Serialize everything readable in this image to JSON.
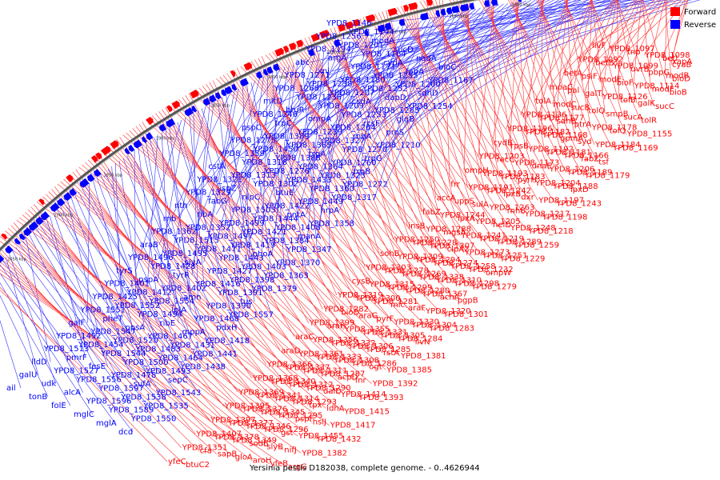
{
  "caption": "Yersinia pestis D182038, complete genome. - 0..4626944",
  "legend": [
    {
      "label": "Forward",
      "color": "#ff0000"
    },
    {
      "label": "Reverse",
      "color": "#0000ff"
    }
  ],
  "backbone_ticks": [
    "1450 kbp",
    "1500 kbp",
    "1550 kbp",
    "1600 kbp",
    "1650 kbp",
    "1700 kbp",
    "1750 kbp",
    "1800 kbp",
    "1850 kbp",
    "1900 kbp",
    "1950 kbp",
    "2000 kbp",
    "2050 kbp"
  ],
  "reverse_labels": [
    "ail",
    "tonB",
    "folE",
    "mglC",
    "mglA",
    "dcd",
    "galU",
    "udk",
    "alcA",
    "YPD8_1596",
    "YPD8_1589",
    "YPD8_1550",
    "lldD",
    "YPD8_1527",
    "YPD8_1556",
    "YPD8_1597",
    "YPD8_1538",
    "YPD8_1535",
    "YPD8_1513",
    "pmrF",
    "fesE",
    "YPD8_1478",
    "sufA",
    "YPD8_1543",
    "YPD8_1492",
    "YPD8_1454",
    "YPD8_1544",
    "YPD8_1500",
    "YPD8_1493",
    "sepC",
    "galF",
    "YPD8_1547",
    "YPD8_1520",
    "YPD8_1483",
    "YPD8_1464",
    "YPD8_1438",
    "YPD8_1551",
    "pheT",
    "ppsA",
    "YPD8_1467",
    "YPD8_1431",
    "YPD8_1441",
    "YPD8_1425",
    "YPD8_1552",
    "YPD8_1494",
    "ribE",
    "mppA",
    "YPD8_1418",
    "YPD8_1401",
    "YPD8_1412",
    "YPD8_1554",
    "lplA",
    "YPD8_1468",
    "pdxH",
    "tyrS",
    "pspA",
    "YPD8_1402",
    "amn",
    "YPD8_1390",
    "YPD8_1557",
    "YPD8_1496",
    "YPD8_1428",
    "tyrR",
    "YPD8_1416",
    "YPD8_1391",
    "tus",
    "araB",
    "YPD8_1495",
    "slyA",
    "YPD8_1427",
    "YPD8_1398",
    "YPD8_1379",
    "YPD8_1362",
    "YPD8_1515",
    "YPD8_1471",
    "YPD8_1443",
    "YPD8_1403",
    "YPD8_1363",
    "rnb",
    "YPD8_1352",
    "YPD8_1497",
    "YPD8_1419",
    "phoA",
    "YPD8_1370",
    "nth",
    "ribA",
    "YPD8_1499",
    "YPD8_1421",
    "YPD8_1384",
    "YPD8_1347",
    "YPD8_1329",
    "fabG",
    "YPD8_1505",
    "YPD8_1444",
    "YPD8_1408",
    "manA",
    "YPD8_1321",
    "ispZ",
    "nlpC",
    "YPD8_1422",
    "pntA",
    "YPD8_1358",
    "cstA",
    "YPD8_1313",
    "YPD8_1302",
    "btuE",
    "YPD8_1449",
    "hrpA",
    "YPD8_1359",
    "YPD8_1316",
    "YPD8_1276",
    "YPD8_1433",
    "YPD8_1360",
    "YPD8_1317",
    "YPD8_1275",
    "YPD8_1450",
    "YPD8_1388",
    "YPD8_1364",
    "YPD8_1323",
    "YPD8_1272",
    "pspC",
    "YPD8_1389",
    "YPD8_1365",
    "trpA",
    "YPD8_1260",
    "trpB",
    "YPD8_1246",
    "trpC",
    "YPD8_1239",
    "YPD8_1327",
    "YPD8_1270",
    "trpG",
    "mltD",
    "btuR",
    "ompA",
    "YPD8_1264",
    "rnhA",
    "YPD8_1210",
    "YPD8_1268",
    "YPD8_1236",
    "YPD8_1209",
    "YPD8_1253",
    "rcsF",
    "proS",
    "YPD8_1271",
    "YPD8_1238",
    "YPD8_1207",
    "csdA",
    "YPD8_1265",
    "glgB",
    "abc",
    "xni",
    "YPD8_1180",
    "YPD8_1252",
    "dapD",
    "YPD8_1254",
    "YPD8_1194",
    "argA",
    "YPD8_1171",
    "YPD8_1255",
    "YPD8_1200",
    "sdhD",
    "YPD8_1256",
    "YPD8_1201",
    "YPD8_1164",
    "cydA",
    "fabA",
    "YPD8_1167",
    "YPD8_1146",
    "YPD8_1144",
    "modA",
    "sucD",
    "nadA",
    "bioC"
  ],
  "forward_labels": [
    "livF",
    "YPD8_1097",
    "tnp",
    "YPD8_1098",
    "betI",
    "xapA",
    "cyaB",
    "YPD8_1092",
    "betB",
    "YPD8_1099",
    "uvrB",
    "pbpG",
    "modB",
    "bioD",
    "betA",
    "psiF",
    "modE",
    "bioF",
    "YPD8_1114",
    "modF",
    "bioB",
    "moaC",
    "pal",
    "galT",
    "YPD8_1126",
    "tolB",
    "galK",
    "sucC",
    "tolA",
    "modC",
    "sucB",
    "tolQ",
    "smpB",
    "sucA",
    "tolR",
    "YPD8_1136",
    "YPD8_1177",
    "sdhB",
    "ptrA",
    "YPD8_1178",
    "tolQ",
    "YPD8_1155",
    "YPD8_1196",
    "YPD8_1182",
    "YPD8_1168",
    "gpmA",
    "syd",
    "YPD8_1184",
    "YPD8_1169",
    "cydB",
    "rpsB",
    "YPD8_1192",
    "YPD8_1181",
    "YPD8_1166",
    "fabZ",
    "tsf",
    "YPD8_1203",
    "recC",
    "YPD8_1173",
    "dnaE",
    "YPD8_1206",
    "YPD8_1189",
    "YPD8_1179",
    "ompH",
    "YPD8_1193",
    "YPD8_1183",
    "pyrH",
    "YPD8_1204",
    "YPD8_1188",
    "lpxD",
    "frr",
    "YPD8_1191",
    "YPD8_1242",
    "lpxB",
    "dxr",
    "YPD8_1197",
    "YPD8_1243",
    "accA",
    "uppS",
    "sulA",
    "YPD8_1263",
    "rnhB",
    "YPD8_1217",
    "YPD8_1198",
    "fabZ",
    "YPD8_1244",
    "lpxA",
    "YPD8_1205",
    "helD",
    "YPD8_1248",
    "YPD8_1218",
    "insB",
    "YPD8_1288",
    "mgsA",
    "YPD8_1241",
    "YPD8_1219",
    "YPD8_1289",
    "YPD8_1259",
    "YPD8_1250",
    "YPD8_1228",
    "YPD8_1307",
    "clpA2",
    "YPD8_1273",
    "YPD8_1251",
    "YPD8_1229",
    "sohB",
    "YPD8_1309",
    "YPD8_1294",
    "YPD8_1274",
    "YPD8_1258",
    "YPD8_1232",
    "ompW",
    "YPD8_1303",
    "YPD8_1278",
    "YPD8_1269",
    "YPD8_1338",
    "YPD8_1310",
    "YPD8_1298",
    "YPD8_1279",
    "cysB",
    "YPD8_1315",
    "YPD8_1299",
    "YPD8_1280",
    "YPD8_1367",
    "acnA",
    "pgpB",
    "YPD8_1319",
    "YPD8_1300",
    "YPD8_1281",
    "mlc",
    "araF",
    "YPD8_1320",
    "YPD8_1301",
    "YPD8_1282",
    "bioD",
    "araG",
    "pyrF",
    "YPD8_1330",
    "YPD8_1304",
    "YPD8_1283",
    "YPD8_1399",
    "araH",
    "YPD8_1355",
    "YPD8_1331",
    "YPD8_1305",
    "YPD8_1284",
    "ilvN",
    "araC",
    "YPD8_1356",
    "YPD8_1332",
    "YPD8_1306",
    "YPD8_1285",
    "rstA",
    "YPD8_1381",
    "araD",
    "YPD8_1361",
    "YPD8_1333",
    "YPD8_1308",
    "YPD8_1286",
    "ogt",
    "YPD8_1385",
    "YPD8_1366",
    "YPD8_1337",
    "YPD8_1311",
    "YPD8_1287",
    "acpD",
    "fnr",
    "YPD8_1392",
    "YPD8_1368",
    "YPD8_1340",
    "YPD8_1312",
    "YPD8_1290",
    "dalD",
    "YPD8_1414",
    "YPD8_1393",
    "YPD8_1369",
    "YPD8_1341",
    "YPD8_1314",
    "YPD8_1293",
    "tpx",
    "ldhA",
    "YPD8_1415",
    "YPD8_1395",
    "YPD8_1376",
    "YPD8_1345",
    "YPD8_1295",
    "pspF",
    "hslJ",
    "YPD8_1417",
    "YPD8_1397",
    "YPD8_1377",
    "YPD8_1346",
    "YPD8_1296",
    "gst",
    "YPD8_1455",
    "YPD8_1432",
    "YPD8_1407",
    "YPD8_1378",
    "YPD8_1349",
    "sodB",
    "slyB",
    "nifJ",
    "YPD8_1382",
    "YPD8_1351",
    "cfa",
    "sapB",
    "gloA",
    "aroH",
    "yfeB",
    "argG",
    "yfeC",
    "btuC2"
  ]
}
